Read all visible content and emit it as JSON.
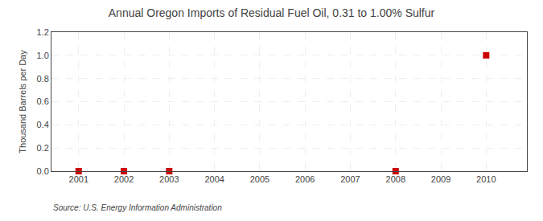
{
  "chart_data": {
    "type": "scatter",
    "title": "Annual Oregon Imports of Residual Fuel Oil, 0.31 to 1.00% Sulfur",
    "ylabel": "Thousand Barrels per Day",
    "source": "Source: U.S. Energy Information Administration",
    "x": [
      2001,
      2002,
      2003,
      2008,
      2010
    ],
    "values": [
      0.0,
      0.0,
      0.0,
      0.0,
      1.0
    ],
    "color": "#cc0000",
    "marker": "square",
    "xlim": [
      2000.4,
      2010.9
    ],
    "xticks": [
      2001,
      2002,
      2003,
      2004,
      2005,
      2006,
      2007,
      2008,
      2009,
      2010
    ],
    "ylim": [
      0.0,
      1.2
    ],
    "yticks": [
      {
        "value": 0,
        "label": "0.0"
      },
      0.2,
      0.4,
      0.6,
      0.8,
      {
        "value": 1,
        "label": "1.0"
      },
      1.2
    ],
    "grid": true
  }
}
